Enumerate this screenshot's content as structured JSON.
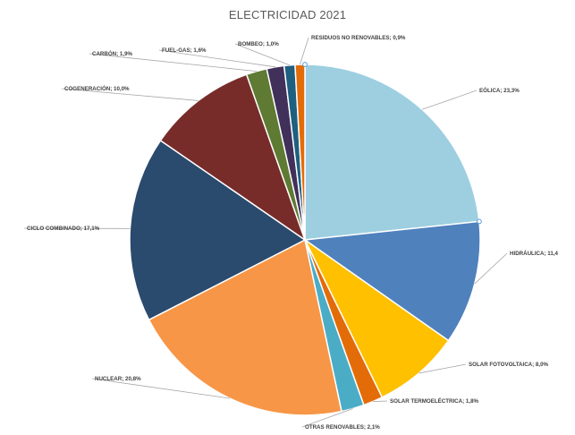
{
  "chart_data": {
    "type": "pie",
    "title": "ELECTRICIDAD 2021",
    "slices": [
      {
        "label": "EÓLICA",
        "value": 23.3,
        "text": "EÓLICA; 23,3%",
        "color": "#9dcfe0"
      },
      {
        "label": "HIDRÁULICA",
        "value": 11.4,
        "text": "HIDRÁULICA; 11,4",
        "color": "#4f81bd"
      },
      {
        "label": "SOLAR FOTOVOLTAICA",
        "value": 8.0,
        "text": "SOLAR FOTOVOLTAICA; 8,0%",
        "color": "#ffc000"
      },
      {
        "label": "SOLAR TERMOELÉCTRICA",
        "value": 1.8,
        "text": "SOLAR TERMOELÉCTRICA; 1,8%",
        "color": "#e36c09"
      },
      {
        "label": "OTRAS RENOVABLES",
        "value": 2.1,
        "text": "OTRAS RENOVABLES; 2,1%",
        "color": "#4bacc6"
      },
      {
        "label": "NUCLEAR",
        "value": 20.8,
        "text": "NUCLEAR; 20,8%",
        "color": "#f79646"
      },
      {
        "label": "CICLO COMBINADO",
        "value": 17.1,
        "text": "CICLO COMBINADO; 17,1%",
        "color": "#2a4a6e"
      },
      {
        "label": "COGENERACIÓN",
        "value": 10.0,
        "text": "COGENERACIÓN; 10,0%",
        "color": "#772c2a"
      },
      {
        "label": "CARBÓN",
        "value": 1.9,
        "text": "CARBÓN; 1,9%",
        "color": "#5e7a33"
      },
      {
        "label": "FUEL-GAS",
        "value": 1.6,
        "text": "FUEL-GAS; 1,6%",
        "color": "#40305a"
      },
      {
        "label": "BOMBEO",
        "value": 1.0,
        "text": "BOMBEO; 1,0%",
        "color": "#1f5f80"
      },
      {
        "label": "RESIDUOS NO RENOVABLES",
        "value": 0.9,
        "text": "RESIDUOS NO RENOVABLES; 0,9%",
        "color": "#e36c09"
      }
    ]
  }
}
